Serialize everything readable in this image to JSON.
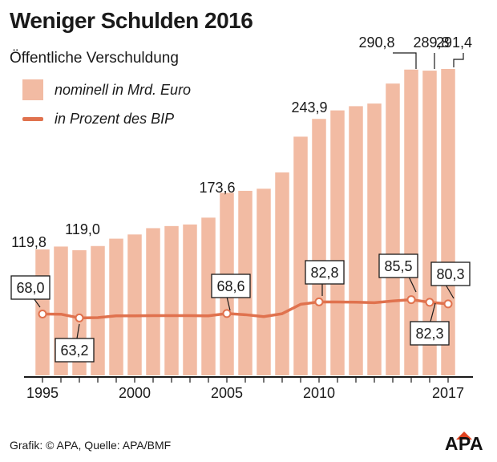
{
  "header": {
    "title": "Weniger Schulden 2016",
    "subtitle": "Öffentliche Verschuldung"
  },
  "legend": {
    "bars_label": "nominell in Mrd. Euro",
    "line_label": "in Prozent des BIP"
  },
  "colors": {
    "bar": "#f2bba3",
    "line": "#e0724e",
    "text": "#1a1a1a"
  },
  "footer": {
    "source": "Grafik: © APA, Quelle: APA/BMF",
    "logo": "APA"
  },
  "chart_data": {
    "type": "bar",
    "x": [
      1995,
      1996,
      1997,
      1998,
      1999,
      2000,
      2001,
      2002,
      2003,
      2004,
      2005,
      2006,
      2007,
      2008,
      2009,
      2010,
      2011,
      2012,
      2013,
      2014,
      2015,
      2016,
      2017
    ],
    "x_ticks": [
      "1995",
      "2000",
      "2005",
      "2010",
      "2017"
    ],
    "series": [
      {
        "name": "nominell in Mrd. Euro",
        "type": "bar",
        "values": [
          119.8,
          122.5,
          119.0,
          123.0,
          130.0,
          134.0,
          140.0,
          142.0,
          143.5,
          150.0,
          173.6,
          175.5,
          177.5,
          193.0,
          227.0,
          243.9,
          252.0,
          256.0,
          258.5,
          277.5,
          290.8,
          289.8,
          291.4
        ],
        "labels": [
          {
            "x": 1995,
            "text": "119,8"
          },
          {
            "x": 1997,
            "text": "119,0"
          },
          {
            "x": 2005,
            "text": "173,6"
          },
          {
            "x": 2010,
            "text": "243,9"
          },
          {
            "x": 2015,
            "text": "290,8"
          },
          {
            "x": 2016,
            "text": "289,8"
          },
          {
            "x": 2017,
            "text": "291,4"
          }
        ]
      },
      {
        "name": "in Prozent des BIP",
        "type": "line",
        "values": [
          68.0,
          67.8,
          63.2,
          63.6,
          65.8,
          65.8,
          66.0,
          66.0,
          66.0,
          65.8,
          68.6,
          67.2,
          64.8,
          68.4,
          79.8,
          82.8,
          82.6,
          82.4,
          81.8,
          83.8,
          85.5,
          82.3,
          80.3
        ],
        "labels": [
          {
            "x": 1995,
            "text": "68,0"
          },
          {
            "x": 1997,
            "text": "63,2"
          },
          {
            "x": 2005,
            "text": "68,6"
          },
          {
            "x": 2010,
            "text": "82,8"
          },
          {
            "x": 2015,
            "text": "85,5"
          },
          {
            "x": 2016,
            "text": "82,3"
          },
          {
            "x": 2017,
            "text": "80,3"
          }
        ]
      }
    ],
    "ylim_bars": [
      0,
      300
    ]
  }
}
